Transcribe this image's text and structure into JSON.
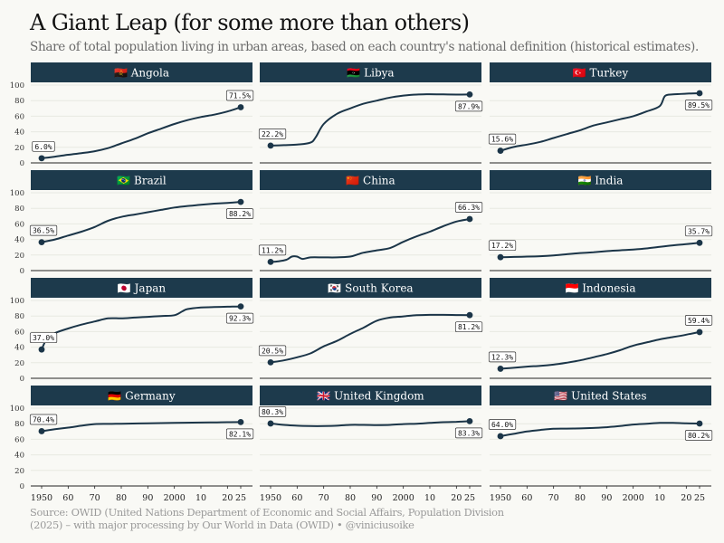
{
  "title": "A Giant Leap (for some more than others)",
  "subtitle": "Share of total population living in urban areas, based on each country's national definition (historical estimates).",
  "source_line1": "Source: OWID (United Nations Department of Economic and Social Affairs, Population Division",
  "source_line2": "(2025) – with major processing by Our World in Data (OWID) • @viniciusoike",
  "colors": {
    "line": "#1b3548",
    "strip": "#1d3a4c",
    "grid": "#e7e9e2",
    "background": "#f9f9f5"
  },
  "chart_data": {
    "type": "line",
    "layout": "small-multiples",
    "x_tick_labels": [
      "1950",
      "60",
      "70",
      "80",
      "90",
      "2000",
      "10",
      "20",
      "25"
    ],
    "x_tick_values": [
      1950,
      1960,
      1970,
      1980,
      1990,
      2000,
      2010,
      2020,
      2025
    ],
    "y_ticks": [
      0,
      20,
      40,
      60,
      80,
      100
    ],
    "xlim": [
      1950,
      2025
    ],
    "ylim": [
      0,
      100
    ],
    "grid": true,
    "panels": [
      {
        "name": "Angola",
        "flag": "🇦🇴",
        "start_label": "6.0%",
        "end_label": "71.5%",
        "x": [
          1950,
          1955,
          1960,
          1965,
          1970,
          1975,
          1980,
          1985,
          1990,
          1995,
          2000,
          2005,
          2010,
          2015,
          2020,
          2025
        ],
        "y": [
          6.0,
          8.0,
          10.5,
          12.5,
          15,
          19,
          25,
          31,
          38,
          44,
          50,
          55,
          59,
          62,
          66,
          71.5
        ]
      },
      {
        "name": "Libya",
        "flag": "🇱🇾",
        "start_label": "22.2%",
        "end_label": "87.9%",
        "x": [
          1950,
          1955,
          1960,
          1965,
          1967,
          1970,
          1975,
          1980,
          1985,
          1990,
          1995,
          2000,
          2005,
          2010,
          2015,
          2020,
          2025
        ],
        "y": [
          22.2,
          22.8,
          23.5,
          26,
          33,
          50,
          63,
          70,
          76,
          80,
          84,
          86.5,
          87.8,
          88.2,
          88,
          87.8,
          87.9
        ]
      },
      {
        "name": "Turkey",
        "flag": "🇹🇷",
        "start_label": "15.6%",
        "end_label": "89.5%",
        "x": [
          1950,
          1955,
          1960,
          1965,
          1970,
          1975,
          1980,
          1985,
          1990,
          1995,
          2000,
          2005,
          2010,
          2012,
          2015,
          2020,
          2025
        ],
        "y": [
          15.6,
          20.5,
          23.5,
          27,
          32,
          37,
          42,
          48,
          52,
          56,
          60,
          66,
          73,
          86,
          88,
          89,
          89.5
        ]
      },
      {
        "name": "Brazil",
        "flag": "🇧🇷",
        "start_label": "36.5%",
        "end_label": "88.2%",
        "x": [
          1950,
          1955,
          1960,
          1965,
          1970,
          1975,
          1980,
          1985,
          1990,
          1995,
          2000,
          2005,
          2010,
          2015,
          2020,
          2025
        ],
        "y": [
          36.5,
          40,
          45,
          50,
          56,
          64,
          69,
          72,
          75,
          78,
          81,
          83,
          84.5,
          86,
          87,
          88.2
        ]
      },
      {
        "name": "China",
        "flag": "🇨🇳",
        "start_label": "11.2%",
        "end_label": "66.3%",
        "x": [
          1950,
          1953,
          1956,
          1958,
          1960,
          1962,
          1965,
          1970,
          1975,
          1980,
          1983,
          1985,
          1990,
          1995,
          2000,
          2005,
          2010,
          2015,
          2020,
          2025
        ],
        "y": [
          11.2,
          12,
          14,
          18,
          18,
          15,
          17,
          17,
          17,
          18,
          21,
          23,
          26,
          29,
          37,
          44,
          50,
          57,
          63,
          66.3
        ]
      },
      {
        "name": "India",
        "flag": "🇮🇳",
        "start_label": "17.2%",
        "end_label": "35.7%",
        "x": [
          1950,
          1955,
          1960,
          1965,
          1970,
          1975,
          1980,
          1985,
          1990,
          1995,
          2000,
          2005,
          2010,
          2015,
          2020,
          2025
        ],
        "y": [
          17.2,
          17.5,
          18,
          18.5,
          19.5,
          21,
          22.5,
          23.5,
          25,
          26,
          27,
          28.5,
          30.5,
          32.5,
          34,
          35.7
        ]
      },
      {
        "name": "Japan",
        "flag": "🇯🇵",
        "start_label": "37.0%",
        "end_label": "92.3%",
        "x": [
          1950,
          1952,
          1955,
          1960,
          1965,
          1970,
          1975,
          1980,
          1985,
          1990,
          1995,
          2000,
          2003,
          2005,
          2010,
          2015,
          2020,
          2025
        ],
        "y": [
          37,
          51,
          58,
          64,
          69,
          73,
          77,
          77,
          78,
          79,
          80,
          81,
          86,
          89,
          91,
          91.5,
          92,
          92.3
        ]
      },
      {
        "name": "South Korea",
        "flag": "🇰🇷",
        "start_label": "20.5%",
        "end_label": "81.2%",
        "x": [
          1950,
          1955,
          1960,
          1965,
          1970,
          1975,
          1980,
          1985,
          1990,
          1995,
          2000,
          2005,
          2010,
          2015,
          2020,
          2025
        ],
        "y": [
          20.5,
          23,
          27,
          32,
          41,
          48,
          57,
          65,
          74,
          78,
          79.5,
          81,
          81.5,
          81.5,
          81.3,
          81.2
        ]
      },
      {
        "name": "Indonesia",
        "flag": "🇮🇩",
        "start_label": "12.3%",
        "end_label": "59.4%",
        "x": [
          1950,
          1955,
          1960,
          1965,
          1970,
          1975,
          1980,
          1985,
          1990,
          1995,
          2000,
          2005,
          2010,
          2015,
          2020,
          2025
        ],
        "y": [
          12.3,
          13.5,
          15,
          16,
          17.5,
          20,
          23,
          27,
          31,
          36,
          42,
          46,
          50,
          53,
          56,
          59.4
        ]
      },
      {
        "name": "Germany",
        "flag": "🇩🇪",
        "start_label": "70.4%",
        "end_label": "82.1%",
        "x": [
          1950,
          1955,
          1960,
          1965,
          1970,
          1975,
          1980,
          1990,
          2000,
          2010,
          2015,
          2020,
          2025
        ],
        "y": [
          70.4,
          73,
          75,
          77.5,
          79.5,
          79.8,
          80,
          80.5,
          81,
          81.5,
          81.7,
          82,
          82.1
        ]
      },
      {
        "name": "United Kingdom",
        "flag": "🇬🇧",
        "start_label": "80.3%",
        "end_label": "83.3%",
        "x": [
          1950,
          1955,
          1960,
          1965,
          1970,
          1975,
          1980,
          1985,
          1990,
          1995,
          2000,
          2005,
          2010,
          2015,
          2020,
          2025
        ],
        "y": [
          80.3,
          78.5,
          77.5,
          77,
          77,
          77.5,
          78.5,
          78.5,
          78.3,
          78.5,
          79.5,
          80,
          81,
          82,
          82.5,
          83.3
        ]
      },
      {
        "name": "United States",
        "flag": "🇺🇸",
        "start_label": "64.0%",
        "end_label": "80.2%",
        "x": [
          1950,
          1955,
          1960,
          1965,
          1970,
          1975,
          1980,
          1985,
          1990,
          1995,
          2000,
          2005,
          2010,
          2015,
          2020,
          2025
        ],
        "y": [
          64,
          67,
          70,
          72,
          73.5,
          73.7,
          74,
          74.5,
          75.5,
          77,
          79,
          80,
          81,
          81,
          80.5,
          80.2
        ]
      }
    ]
  }
}
